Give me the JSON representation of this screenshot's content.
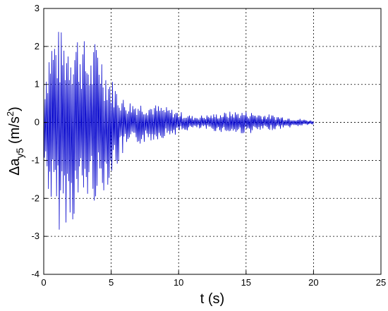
{
  "chart_data": {
    "type": "line",
    "title": "",
    "xlabel": "t (s)",
    "ylabel": {
      "prefix": "Δa",
      "sub": "y5",
      "unit_open": " (m/s",
      "sup": "2",
      "unit_close": ")"
    },
    "xlim": [
      0,
      25
    ],
    "ylim": [
      -4,
      3
    ],
    "xticks": [
      "0",
      "5",
      "10",
      "15",
      "20",
      "25"
    ],
    "yticks": [
      "3",
      "2",
      "1",
      "0",
      "-1",
      "-2",
      "-3",
      "-4"
    ],
    "grid": true,
    "series": [
      {
        "color": "#0000cc",
        "sample_dt": 0.05,
        "x_end": 20,
        "envelope": {
          "t": [
            0,
            0.5,
            1,
            1.5,
            2,
            2.5,
            3,
            3.5,
            4,
            4.5,
            5,
            6,
            7,
            8,
            9,
            10,
            11,
            12,
            13,
            14,
            15,
            16,
            17,
            18,
            19,
            20
          ],
          "max": [
            1.2,
            2.4,
            2.5,
            2.4,
            2.5,
            2.5,
            2.2,
            1.8,
            2.4,
            1.6,
            1.2,
            0.6,
            0.55,
            0.5,
            0.42,
            0.3,
            0.18,
            0.2,
            0.25,
            0.3,
            0.3,
            0.25,
            0.2,
            0.15,
            0.1,
            0.05
          ],
          "min": [
            -1.2,
            -2.2,
            -3.0,
            -2.6,
            -2.8,
            -2.4,
            -2.2,
            -2.0,
            -2.2,
            -1.8,
            -1.5,
            -0.8,
            -0.6,
            -0.5,
            -0.4,
            -0.3,
            -0.18,
            -0.2,
            -0.25,
            -0.3,
            -0.3,
            -0.25,
            -0.2,
            -0.15,
            -0.1,
            -0.05
          ]
        }
      }
    ]
  }
}
